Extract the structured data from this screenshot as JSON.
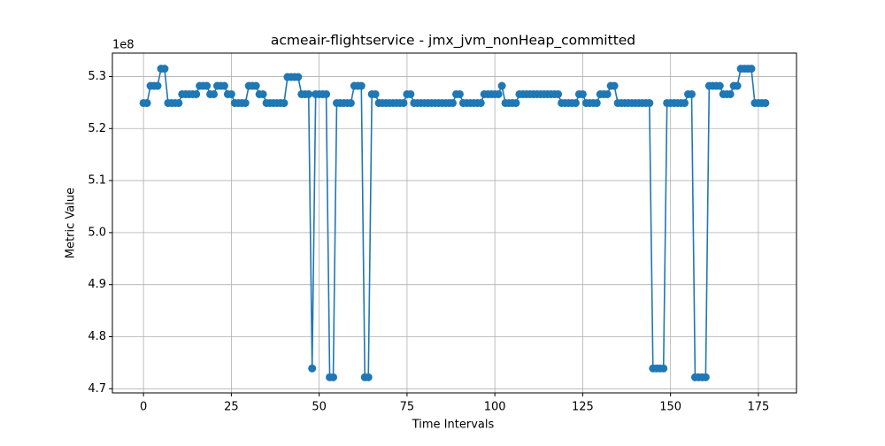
{
  "chart_data": {
    "type": "line",
    "title": "acmeair-flightservice - jmx_jvm_nonHeap_committed",
    "x_label": "Time Intervals",
    "y_label": "Metric Value",
    "y_offset": "1e8",
    "x": [
      0,
      1,
      2,
      3,
      4,
      5,
      6,
      7,
      8,
      9,
      10,
      11,
      12,
      13,
      14,
      15,
      16,
      17,
      18,
      19,
      20,
      21,
      22,
      23,
      24,
      25,
      26,
      27,
      28,
      29,
      30,
      31,
      32,
      33,
      34,
      35,
      36,
      37,
      38,
      39,
      40,
      41,
      42,
      43,
      44,
      45,
      46,
      47,
      48,
      49,
      50,
      51,
      52,
      53,
      54,
      55,
      56,
      57,
      58,
      59,
      60,
      61,
      62,
      63,
      64,
      65,
      66,
      67,
      68,
      69,
      70,
      71,
      72,
      73,
      74,
      75,
      76,
      77,
      78,
      79,
      80,
      81,
      82,
      83,
      84,
      85,
      86,
      87,
      88,
      89,
      90,
      91,
      92,
      93,
      94,
      95,
      96,
      97,
      98,
      99,
      100,
      101,
      102,
      103,
      104,
      105,
      106,
      107,
      108,
      109,
      110,
      111,
      112,
      113,
      114,
      115,
      116,
      117,
      118,
      119,
      120,
      121,
      122,
      123,
      124,
      125,
      126,
      127,
      128,
      129,
      130,
      131,
      132,
      133,
      134,
      135,
      136,
      137,
      138,
      139,
      140,
      141,
      142,
      143,
      144,
      145,
      146,
      147,
      148,
      149,
      150,
      151,
      152,
      153,
      154,
      155,
      156,
      157,
      158,
      159,
      160,
      161,
      162,
      163,
      164,
      165,
      166,
      167,
      168,
      169,
      170,
      171,
      172,
      173,
      174,
      175,
      176,
      177
    ],
    "series": [
      {
        "color": "#1f77b4",
        "values": [
          5.249,
          5.249,
          5.282,
          5.282,
          5.282,
          5.315,
          5.315,
          5.249,
          5.249,
          5.249,
          5.249,
          5.266,
          5.266,
          5.266,
          5.266,
          5.266,
          5.282,
          5.282,
          5.282,
          5.266,
          5.266,
          5.282,
          5.282,
          5.282,
          5.266,
          5.266,
          5.249,
          5.249,
          5.249,
          5.249,
          5.282,
          5.282,
          5.282,
          5.266,
          5.266,
          5.249,
          5.249,
          5.249,
          5.249,
          5.249,
          5.249,
          5.299,
          5.299,
          5.299,
          5.299,
          5.266,
          5.266,
          5.266,
          4.739,
          5.266,
          5.266,
          5.266,
          5.266,
          4.722,
          4.722,
          5.249,
          5.249,
          5.249,
          5.249,
          5.249,
          5.282,
          5.282,
          5.282,
          4.722,
          4.722,
          5.266,
          5.266,
          5.249,
          5.249,
          5.249,
          5.249,
          5.249,
          5.249,
          5.249,
          5.249,
          5.266,
          5.266,
          5.249,
          5.249,
          5.249,
          5.249,
          5.249,
          5.249,
          5.249,
          5.249,
          5.249,
          5.249,
          5.249,
          5.249,
          5.266,
          5.266,
          5.249,
          5.249,
          5.249,
          5.249,
          5.249,
          5.249,
          5.266,
          5.266,
          5.266,
          5.266,
          5.266,
          5.282,
          5.249,
          5.249,
          5.249,
          5.249,
          5.266,
          5.266,
          5.266,
          5.266,
          5.266,
          5.266,
          5.266,
          5.266,
          5.266,
          5.266,
          5.266,
          5.266,
          5.249,
          5.249,
          5.249,
          5.249,
          5.249,
          5.266,
          5.266,
          5.249,
          5.249,
          5.249,
          5.249,
          5.266,
          5.266,
          5.266,
          5.282,
          5.282,
          5.249,
          5.249,
          5.249,
          5.249,
          5.249,
          5.249,
          5.249,
          5.249,
          5.249,
          5.249,
          4.739,
          4.739,
          4.739,
          4.739,
          5.249,
          5.249,
          5.249,
          5.249,
          5.249,
          5.249,
          5.266,
          5.266,
          4.722,
          4.722,
          4.722,
          4.722,
          5.282,
          5.282,
          5.282,
          5.282,
          5.266,
          5.266,
          5.266,
          5.282,
          5.282,
          5.315,
          5.315,
          5.315,
          5.315,
          5.249,
          5.249,
          5.249,
          5.249
        ]
      }
    ],
    "xlim": [
      -8.85,
      185.85
    ],
    "xticks": [
      0,
      25,
      50,
      75,
      100,
      125,
      150,
      175
    ],
    "ylim": [
      4.692,
      5.345
    ],
    "yticks": [
      4.7,
      4.8,
      4.9,
      {
        "value": 5,
        "label": "5.0"
      },
      5.1,
      5.2,
      5.3
    ],
    "grid": true
  }
}
